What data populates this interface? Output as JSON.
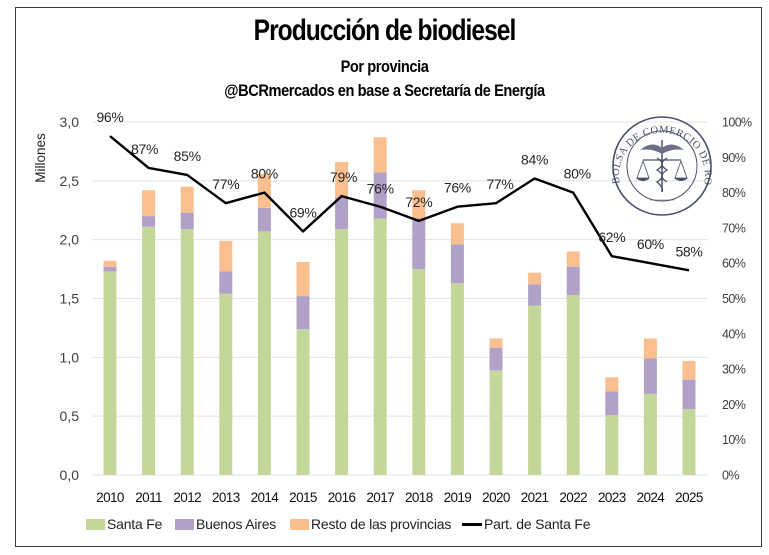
{
  "chart_data": {
    "type": "bar",
    "stacked": true,
    "title": "Producción de biodiesel",
    "subtitle": "Por provincia",
    "source": "@BCRmercados en base a Secretaría de Energía",
    "ylabel": "Millones",
    "y2label": "",
    "xlabel": "",
    "categories": [
      "2010",
      "2011",
      "2012",
      "2013",
      "2014",
      "2015",
      "2016",
      "2017",
      "2018",
      "2019",
      "2020",
      "2021",
      "2022",
      "2023",
      "2024",
      "2025"
    ],
    "ylim": [
      0,
      3.0
    ],
    "y_ticks": [
      "0,0",
      "0,5",
      "1,0",
      "1,5",
      "2,0",
      "2,5",
      "3,0"
    ],
    "y_tick_values": [
      0,
      0.5,
      1.0,
      1.5,
      2.0,
      2.5,
      3.0
    ],
    "y2lim": [
      0,
      100
    ],
    "y2_ticks": [
      "0%",
      "10%",
      "20%",
      "30%",
      "40%",
      "50%",
      "60%",
      "70%",
      "80%",
      "90%",
      "100%"
    ],
    "y2_tick_values": [
      0,
      10,
      20,
      30,
      40,
      50,
      60,
      70,
      80,
      90,
      100
    ],
    "grid": true,
    "legend_position": "bottom",
    "series": [
      {
        "name": "Santa Fe",
        "type": "bar",
        "axis": "left",
        "color": "#C4D79B",
        "values": [
          1.73,
          2.11,
          2.09,
          1.54,
          2.07,
          1.24,
          2.09,
          2.18,
          1.75,
          1.63,
          0.89,
          1.44,
          1.53,
          0.51,
          0.69,
          0.56
        ]
      },
      {
        "name": "Buenos Aires",
        "type": "bar",
        "axis": "left",
        "color": "#B1A0C7",
        "values": [
          0.04,
          0.09,
          0.14,
          0.19,
          0.2,
          0.28,
          0.27,
          0.39,
          0.43,
          0.33,
          0.19,
          0.18,
          0.24,
          0.2,
          0.3,
          0.25
        ]
      },
      {
        "name": "Resto de las provincias",
        "type": "bar",
        "axis": "left",
        "color": "#FABF8F",
        "values": [
          0.05,
          0.22,
          0.22,
          0.26,
          0.29,
          0.29,
          0.3,
          0.3,
          0.24,
          0.18,
          0.08,
          0.1,
          0.13,
          0.12,
          0.17,
          0.16
        ]
      },
      {
        "name": "Part. de Santa Fe",
        "type": "line",
        "axis": "right",
        "color": "#000000",
        "values": [
          96,
          87,
          85,
          77,
          80,
          69,
          79,
          76,
          72,
          76,
          77,
          84,
          80,
          62,
          60,
          58
        ],
        "labels": [
          "96%",
          "87%",
          "85%",
          "77%",
          "80%",
          "69%",
          "79%",
          "76%",
          "72%",
          "76%",
          "77%",
          "84%",
          "80%",
          "62%",
          "60%",
          "58%"
        ]
      }
    ]
  },
  "logo": {
    "text": "BOLSA DE COMERCIO DE ROSARIO",
    "icon": "caduceus-scales-seal-icon"
  }
}
